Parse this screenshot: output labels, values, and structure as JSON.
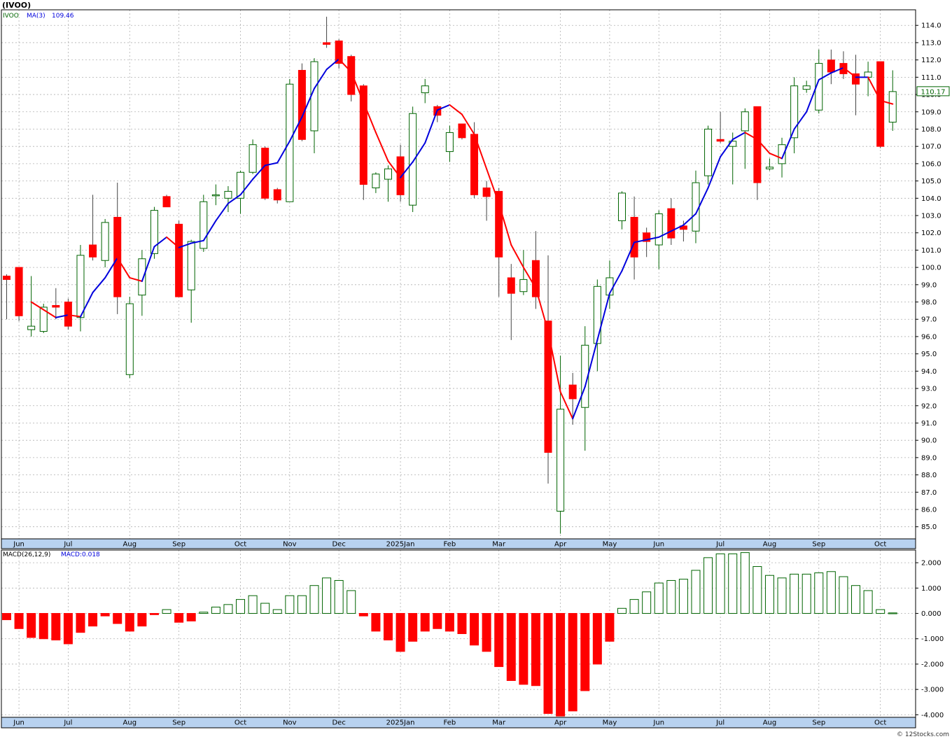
{
  "symbol_title": "(IVOO)",
  "footer": "© 12Stocks.com",
  "colors": {
    "up": "#006400",
    "down": "#ff0000",
    "ma_up": "#0000dd",
    "ma_down": "#ff0000",
    "axis_strip": "#b8d2f0",
    "grid": "#b0b0b0",
    "price_badge": "#006400"
  },
  "chart_data": [
    {
      "type": "candlestick",
      "legend": {
        "symbol": "IVOO",
        "ma_label": "MA(3)",
        "ma_value": "109.46"
      },
      "last_price": "110.17",
      "ylim": [
        84.3,
        114.9
      ],
      "y_ticks": [
        85,
        86,
        87,
        88,
        89,
        90,
        91,
        92,
        93,
        94,
        95,
        96,
        97,
        98,
        99,
        100,
        101,
        102,
        103,
        104,
        105,
        106,
        107,
        108,
        109,
        110,
        111,
        112,
        113,
        114
      ],
      "x_labels": [
        "Jun",
        "Jul",
        "Aug",
        "Sep",
        "Oct",
        "Nov",
        "Dec",
        "2025Jan",
        "Feb",
        "Mar",
        "Apr",
        "May",
        "Jun",
        "Jul",
        "Aug",
        "Sep",
        "Oct"
      ],
      "x_label_index": [
        1,
        5,
        10,
        14,
        19,
        23,
        27,
        32,
        36,
        40,
        45,
        49,
        53,
        58,
        62,
        66,
        71
      ],
      "candles": [
        {
          "o": 99.5,
          "h": 99.6,
          "l": 97.0,
          "c": 99.3
        },
        {
          "o": 100.0,
          "h": 100.0,
          "l": 96.9,
          "c": 97.2
        },
        {
          "o": 96.4,
          "h": 99.5,
          "l": 96.0,
          "c": 96.6
        },
        {
          "o": 96.3,
          "h": 97.9,
          "l": 96.2,
          "c": 97.7
        },
        {
          "o": 97.8,
          "h": 98.8,
          "l": 97.0,
          "c": 97.7
        },
        {
          "o": 98.0,
          "h": 98.2,
          "l": 96.4,
          "c": 96.6
        },
        {
          "o": 97.1,
          "h": 101.3,
          "l": 96.3,
          "c": 100.7
        },
        {
          "o": 101.3,
          "h": 104.2,
          "l": 100.4,
          "c": 100.6
        },
        {
          "o": 100.4,
          "h": 102.8,
          "l": 100.0,
          "c": 102.6
        },
        {
          "o": 102.9,
          "h": 104.9,
          "l": 97.3,
          "c": 98.3
        },
        {
          "o": 93.8,
          "h": 98.3,
          "l": 93.6,
          "c": 97.9
        },
        {
          "o": 98.4,
          "h": 101.0,
          "l": 97.2,
          "c": 100.5
        },
        {
          "o": 100.8,
          "h": 103.5,
          "l": 100.5,
          "c": 103.3
        },
        {
          "o": 104.1,
          "h": 104.2,
          "l": 103.5,
          "c": 103.5
        },
        {
          "o": 102.5,
          "h": 102.7,
          "l": 98.3,
          "c": 98.3
        },
        {
          "o": 98.7,
          "h": 101.6,
          "l": 96.8,
          "c": 101.5
        },
        {
          "o": 101.1,
          "h": 104.2,
          "l": 100.9,
          "c": 103.8
        },
        {
          "o": 104.2,
          "h": 104.8,
          "l": 103.6,
          "c": 104.2
        },
        {
          "o": 104.0,
          "h": 104.7,
          "l": 103.2,
          "c": 104.4
        },
        {
          "o": 104.0,
          "h": 105.6,
          "l": 103.1,
          "c": 105.5
        },
        {
          "o": 105.5,
          "h": 107.4,
          "l": 105.4,
          "c": 107.1
        },
        {
          "o": 106.9,
          "h": 107.0,
          "l": 103.9,
          "c": 104.0
        },
        {
          "o": 104.5,
          "h": 104.6,
          "l": 103.7,
          "c": 103.9
        },
        {
          "o": 103.8,
          "h": 110.9,
          "l": 103.8,
          "c": 110.6
        },
        {
          "o": 111.4,
          "h": 111.8,
          "l": 107.3,
          "c": 107.4
        },
        {
          "o": 107.9,
          "h": 112.1,
          "l": 106.6,
          "c": 111.9
        },
        {
          "o": 113.0,
          "h": 114.5,
          "l": 112.7,
          "c": 112.9
        },
        {
          "o": 113.1,
          "h": 113.2,
          "l": 111.5,
          "c": 111.8
        },
        {
          "o": 112.2,
          "h": 112.3,
          "l": 109.6,
          "c": 110.0
        },
        {
          "o": 110.5,
          "h": 110.6,
          "l": 103.9,
          "c": 104.8
        },
        {
          "o": 104.6,
          "h": 105.5,
          "l": 104.3,
          "c": 105.4
        },
        {
          "o": 105.1,
          "h": 105.9,
          "l": 103.8,
          "c": 105.7
        },
        {
          "o": 106.4,
          "h": 107.1,
          "l": 103.8,
          "c": 104.2
        },
        {
          "o": 103.6,
          "h": 109.3,
          "l": 103.2,
          "c": 108.9
        },
        {
          "o": 110.1,
          "h": 110.9,
          "l": 109.5,
          "c": 110.5
        },
        {
          "o": 109.3,
          "h": 109.4,
          "l": 108.4,
          "c": 108.8
        },
        {
          "o": 106.7,
          "h": 108.2,
          "l": 106.1,
          "c": 107.8
        },
        {
          "o": 108.3,
          "h": 108.3,
          "l": 107.4,
          "c": 107.5
        },
        {
          "o": 107.7,
          "h": 108.4,
          "l": 104.0,
          "c": 104.2
        },
        {
          "o": 104.6,
          "h": 105.0,
          "l": 102.7,
          "c": 104.1
        },
        {
          "o": 104.4,
          "h": 104.6,
          "l": 98.3,
          "c": 100.6
        },
        {
          "o": 99.4,
          "h": 100.2,
          "l": 95.8,
          "c": 98.5
        },
        {
          "o": 98.6,
          "h": 101.0,
          "l": 98.4,
          "c": 99.3
        },
        {
          "o": 100.4,
          "h": 102.1,
          "l": 97.6,
          "c": 98.3
        },
        {
          "o": 96.9,
          "h": 100.7,
          "l": 87.5,
          "c": 89.3
        },
        {
          "o": 85.9,
          "h": 94.9,
          "l": 84.6,
          "c": 91.8
        },
        {
          "o": 93.2,
          "h": 93.9,
          "l": 90.9,
          "c": 92.4
        },
        {
          "o": 91.9,
          "h": 96.6,
          "l": 89.4,
          "c": 95.5
        },
        {
          "o": 95.6,
          "h": 99.3,
          "l": 94.0,
          "c": 98.9
        },
        {
          "o": 98.4,
          "h": 100.4,
          "l": 97.6,
          "c": 99.4
        },
        {
          "o": 102.7,
          "h": 104.4,
          "l": 102.2,
          "c": 104.3
        },
        {
          "o": 102.9,
          "h": 104.1,
          "l": 99.3,
          "c": 100.6
        },
        {
          "o": 102.0,
          "h": 102.3,
          "l": 100.6,
          "c": 101.5
        },
        {
          "o": 101.3,
          "h": 103.3,
          "l": 99.9,
          "c": 103.1
        },
        {
          "o": 103.4,
          "h": 104.0,
          "l": 101.3,
          "c": 101.7
        },
        {
          "o": 102.4,
          "h": 102.7,
          "l": 101.5,
          "c": 102.2
        },
        {
          "o": 102.1,
          "h": 105.6,
          "l": 101.4,
          "c": 104.9
        },
        {
          "o": 105.3,
          "h": 108.2,
          "l": 104.8,
          "c": 108.0
        },
        {
          "o": 107.4,
          "h": 109.0,
          "l": 107.2,
          "c": 107.3
        },
        {
          "o": 107.0,
          "h": 107.8,
          "l": 104.8,
          "c": 107.3
        },
        {
          "o": 107.9,
          "h": 109.2,
          "l": 105.7,
          "c": 109.0
        },
        {
          "o": 109.3,
          "h": 109.3,
          "l": 103.9,
          "c": 104.9
        },
        {
          "o": 105.7,
          "h": 106.3,
          "l": 105.6,
          "c": 105.8
        },
        {
          "o": 106.0,
          "h": 107.5,
          "l": 105.2,
          "c": 107.1
        },
        {
          "o": 107.5,
          "h": 111.0,
          "l": 106.6,
          "c": 110.5
        },
        {
          "o": 110.3,
          "h": 110.8,
          "l": 110.1,
          "c": 110.5
        },
        {
          "o": 109.1,
          "h": 112.6,
          "l": 108.9,
          "c": 111.8
        },
        {
          "o": 112.0,
          "h": 112.6,
          "l": 110.6,
          "c": 111.3
        },
        {
          "o": 111.8,
          "h": 112.5,
          "l": 110.9,
          "c": 111.2
        },
        {
          "o": 111.2,
          "h": 112.3,
          "l": 108.8,
          "c": 110.6
        },
        {
          "o": 111.0,
          "h": 111.9,
          "l": 109.9,
          "c": 111.3
        },
        {
          "o": 111.9,
          "h": 111.9,
          "l": 106.9,
          "c": 107.0
        },
        {
          "o": 108.4,
          "h": 111.4,
          "l": 107.9,
          "c": 110.17
        }
      ],
      "ma3": [
        null,
        null,
        98.0,
        97.55,
        97.1,
        97.25,
        97.15,
        98.55,
        99.4,
        100.55,
        99.4,
        99.2,
        101.2,
        101.75,
        101.15,
        101.4,
        101.55,
        102.7,
        103.7,
        104.2,
        105.1,
        105.9,
        106.05,
        107.3,
        108.7,
        110.35,
        111.45,
        112.05,
        111.3,
        109.55,
        107.8,
        106.15,
        105.2,
        106.1,
        107.2,
        109.1,
        109.4,
        108.85,
        107.7,
        105.7,
        103.7,
        101.3,
        100.0,
        98.8,
        96.3,
        92.8,
        91.25,
        93.1,
        95.8,
        98.5,
        99.8,
        101.45,
        101.6,
        101.75,
        102.1,
        102.45,
        103.1,
        104.6,
        106.4,
        107.4,
        107.8,
        107.4,
        106.6,
        106.3,
        108.0,
        109.0,
        110.85,
        111.25,
        111.55,
        111.0,
        111.0,
        109.65,
        109.45
      ],
      "series": [
        {
          "name": "IVOO"
        },
        {
          "name": "MA(3)"
        }
      ]
    },
    {
      "type": "bar",
      "legend": {
        "label": "MACD(26,12,9)",
        "value_label": "MACD:0.018"
      },
      "ylim": [
        -4.1,
        2.5
      ],
      "y_ticks": [
        2,
        1,
        0,
        -1,
        -2,
        -3,
        -4
      ],
      "y_tick_labels": [
        "2.000",
        "1.000",
        "0.000",
        "-1.000",
        "-2.000",
        "-3.000",
        "-4.000"
      ],
      "x_labels": [
        "Jun",
        "Jul",
        "Aug",
        "Sep",
        "Oct",
        "Nov",
        "Dec",
        "2025Jan",
        "Feb",
        "Mar",
        "Apr",
        "May",
        "Jun",
        "Jul",
        "Aug",
        "Sep",
        "Oct"
      ],
      "x_label_index": [
        1,
        5,
        10,
        14,
        19,
        23,
        27,
        32,
        36,
        40,
        45,
        49,
        53,
        58,
        62,
        66,
        71
      ],
      "values": [
        -0.25,
        -0.6,
        -0.95,
        -1.0,
        -1.05,
        -1.2,
        -0.75,
        -0.5,
        -0.1,
        -0.4,
        -0.7,
        -0.5,
        -0.05,
        0.15,
        -0.35,
        -0.3,
        0.05,
        0.25,
        0.35,
        0.55,
        0.7,
        0.4,
        0.15,
        0.7,
        0.7,
        1.1,
        1.4,
        1.3,
        0.9,
        -0.1,
        -0.7,
        -1.05,
        -1.5,
        -1.1,
        -0.7,
        -0.6,
        -0.7,
        -0.8,
        -1.25,
        -1.5,
        -2.1,
        -2.65,
        -2.8,
        -2.85,
        -3.95,
        -4.05,
        -3.85,
        -3.05,
        -2.0,
        -1.1,
        0.2,
        0.55,
        0.85,
        1.2,
        1.3,
        1.35,
        1.7,
        2.2,
        2.35,
        2.35,
        2.4,
        1.85,
        1.5,
        1.4,
        1.55,
        1.55,
        1.6,
        1.65,
        1.45,
        1.1,
        0.9,
        0.15,
        0.02
      ]
    }
  ]
}
